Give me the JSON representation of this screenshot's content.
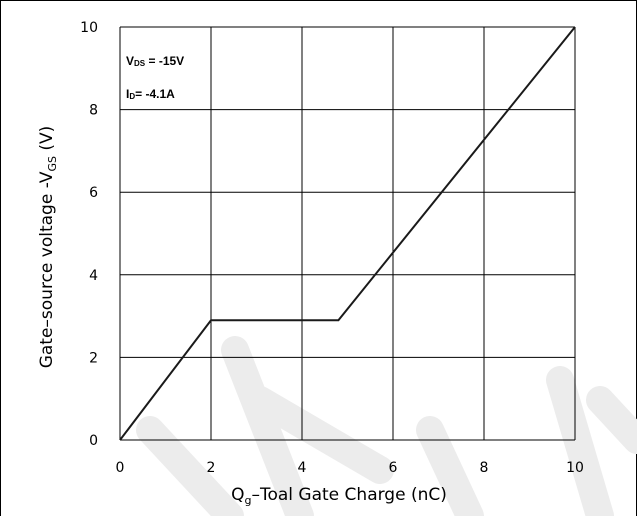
{
  "chart_data": {
    "type": "line",
    "title": "",
    "xlabel": {
      "main": "Q",
      "sub": "g",
      "rest": "–Toal Gate Charge  (nC)"
    },
    "ylabel": {
      "main": "Gate–source voltage -V",
      "sub": "GS",
      "rest": " (V)"
    },
    "xlim": [
      0,
      10
    ],
    "ylim": [
      0,
      10
    ],
    "xticks": [
      "0",
      "2",
      "4",
      "6",
      "8",
      "10"
    ],
    "yticks": [
      "0",
      "2",
      "4",
      "6",
      "8",
      "10"
    ],
    "grid": true,
    "annotations": [
      {
        "main": "V",
        "sub": "DS",
        "rest": " = -15V"
      },
      {
        "main": "I",
        "sub": "D",
        "rest": "= -4.1A"
      }
    ],
    "series": [
      {
        "x": [
          0,
          2,
          4.8,
          10
        ],
        "y": [
          0,
          2.9,
          2.9,
          10
        ]
      }
    ],
    "colors": {
      "line": "#1a1a1a",
      "grid": "#000000"
    }
  }
}
